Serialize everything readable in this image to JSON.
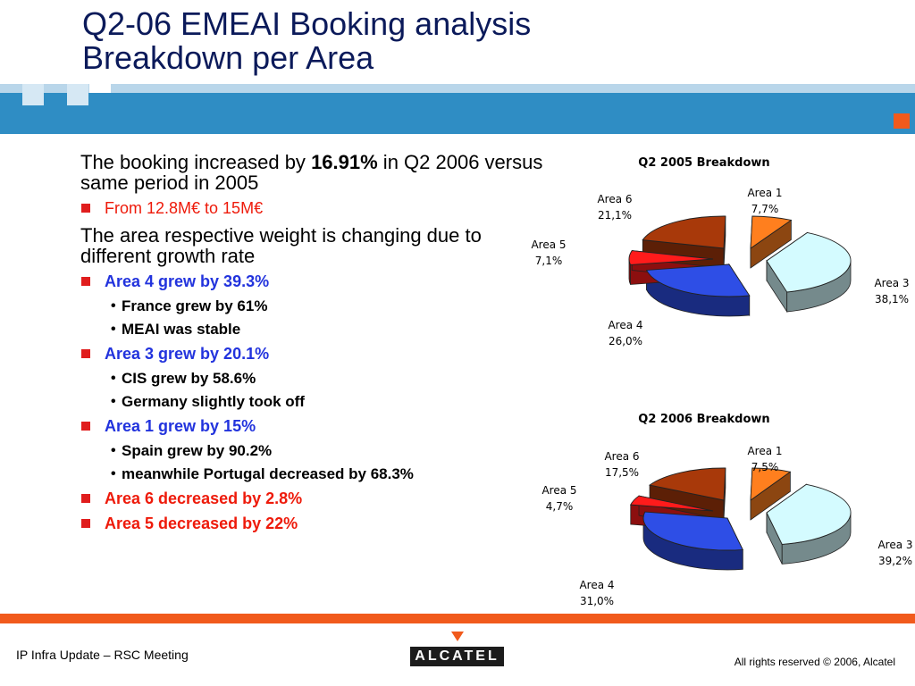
{
  "slide": {
    "title_line1": "Q2-06 EMEAI Booking analysis",
    "title_line2": "Breakdown per Area"
  },
  "body": {
    "para1_prefix": "The booking increased by ",
    "para1_bold": "16.91%",
    "para1_suffix": " in Q2 2006 versus same period in 2005",
    "bullet_range": "From 12.8M€ to 15M€",
    "para2": "The area respective weight is changing due to different growth rate",
    "area4": "Area 4 grew by 39.3%",
    "area4_sub1": "France grew by 61%",
    "area4_sub2": "MEAI was stable",
    "area3": "Area 3 grew by 20.1%",
    "area3_sub1": "CIS grew by 58.6%",
    "area3_sub2": "Germany slightly took off",
    "area1": "Area 1 grew by 15%",
    "area1_sub1": "Spain grew by 90.2%",
    "area1_sub2": "meanwhile Portugal decreased by 68.3%",
    "area6": "Area 6 decreased by 2.8%",
    "area5": "Area 5 decreased by 22%"
  },
  "chart_data": [
    {
      "type": "pie",
      "title": "Q2 2005 Breakdown",
      "slices": [
        {
          "label": "Area 1",
          "value_label": "7,7%",
          "value": 7.7,
          "color": "#ff7f1e"
        },
        {
          "label": "Area 3",
          "value_label": "38,1%",
          "value": 38.1,
          "color": "#d4fbff"
        },
        {
          "label": "Area 4",
          "value_label": "26,0%",
          "value": 26.0,
          "color": "#2e4ee6"
        },
        {
          "label": "Area 5",
          "value_label": "7,1%",
          "value": 7.1,
          "color": "#ff1b1b"
        },
        {
          "label": "Area 6",
          "value_label": "21,1%",
          "value": 21.1,
          "color": "#a8390a"
        }
      ]
    },
    {
      "type": "pie",
      "title": "Q2 2006 Breakdown",
      "slices": [
        {
          "label": "Area 1",
          "value_label": "7,5%",
          "value": 7.5,
          "color": "#ff7f1e"
        },
        {
          "label": "Area 3",
          "value_label": "39,2%",
          "value": 39.2,
          "color": "#d4fbff"
        },
        {
          "label": "Area 4",
          "value_label": "31,0%",
          "value": 31.0,
          "color": "#2e4ee6"
        },
        {
          "label": "Area 5",
          "value_label": "4,7%",
          "value": 4.7,
          "color": "#ff1b1b"
        },
        {
          "label": "Area 6",
          "value_label": "17,5%",
          "value": 17.5,
          "color": "#a8390a"
        }
      ]
    }
  ],
  "footer": {
    "left": "IP Infra Update – RSC Meeting",
    "right": "All rights reserved © 2006, Alcatel",
    "logo_text": "ALCATEL"
  },
  "colors": {
    "band_dark": "#2f8dc4",
    "band_light": "#b9d6ea",
    "accent_orange": "#f15a1c",
    "title": "#0b1a5a",
    "bullet_blue": "#2233dd",
    "bullet_red": "#ee1a0a"
  }
}
